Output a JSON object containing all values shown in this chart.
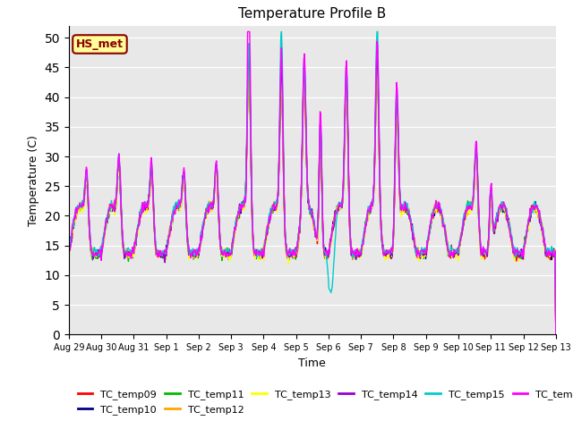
{
  "title": "Temperature Profile B",
  "xlabel": "Time",
  "ylabel": "Temperature (C)",
  "ylim": [
    0,
    52
  ],
  "yticks": [
    0,
    5,
    10,
    15,
    20,
    25,
    30,
    35,
    40,
    45,
    50
  ],
  "bg_color": "#e8e8e8",
  "fig_bg": "#ffffff",
  "series_colors": {
    "TC_temp09": "#ff0000",
    "TC_temp10": "#00008b",
    "TC_temp11": "#00bb00",
    "TC_temp12": "#ffa500",
    "TC_temp13": "#ffff00",
    "TC_temp14": "#9900cc",
    "TC_temp15": "#00cccc",
    "TC_temp16": "#ff00ff"
  },
  "annotation_text": "HS_met",
  "annotation_color": "#8b0000",
  "annotation_bg": "#ffff99",
  "x_tick_labels": [
    "Aug 29",
    "Aug 30",
    "Aug 31",
    "Sep 1",
    "Sep 2",
    "Sep 3",
    "Sep 4",
    "Sep 5",
    "Sep 6",
    "Sep 7",
    "Sep 8",
    "Sep 9",
    "Sep 10",
    "Sep 11",
    "Sep 12",
    "Sep 13"
  ],
  "line_width": 1.0
}
